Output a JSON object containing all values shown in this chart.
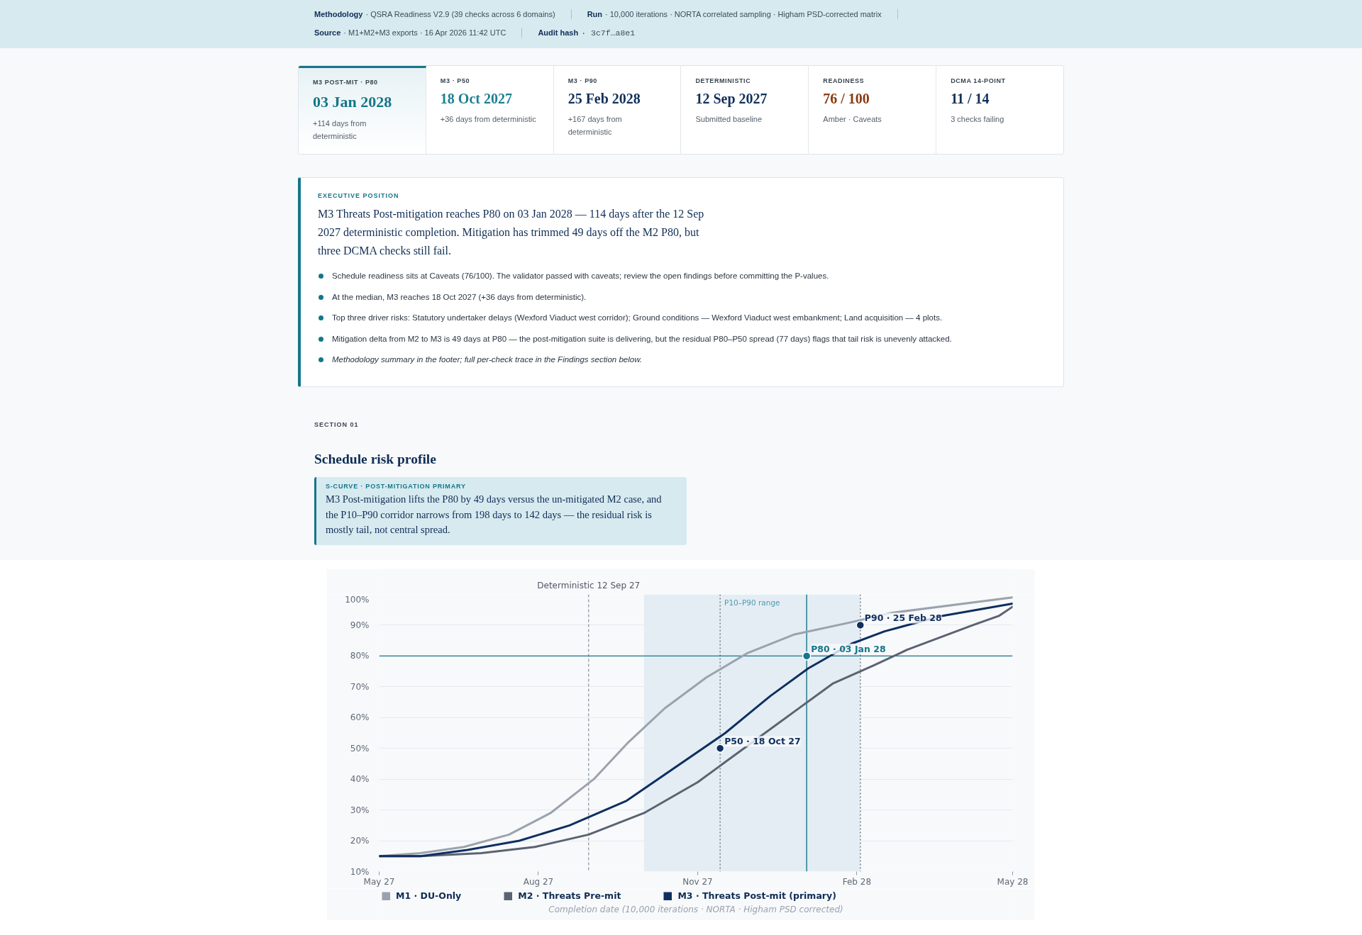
{
  "chart_data": [
    {
      "type": "other",
      "annotations": [
        "Methodology",
        "· QSRA Readiness V2.9 (39 checks across 6 domains)",
        "Run",
        "· 10,000 iterations · NORTA correlated sampling · Higham PSD-corrected matrix",
        "Source",
        "· M1+M2+M3 exports · 16 Apr 2026 11:42 UTC",
        "Audit hash",
        "· 3c7f…a8e1"
      ]
    },
    {
      "type": "other",
      "annotations": [
        "M3 POST-MIT · P80",
        "03 Jan 2028",
        "+114 days from deterministic",
        "M3 · P50",
        "18 Oct 2027",
        "+36 days from deterministic",
        "M3 · P90",
        "25 Feb 2028",
        "+167 days from deterministic",
        "DETERMINISTIC",
        "12 Sep 2027",
        "Submitted baseline",
        "READINESS",
        "76 / 100",
        "Amber · Caveats",
        "DCMA 14-POINT",
        "11 / 14",
        "3 checks failing"
      ],
      "colors": [
        "#16768a",
        "#1d7f94",
        "#12305a",
        "#12305a",
        "#8a3a12",
        "#12305a"
      ]
    },
    {
      "type": "other",
      "title": "EXECUTIVE POSITION",
      "subtitle": "M3 Threats Post-mitigation reaches P80 on 03 Jan 2028 — 114 days after the 12 Sep 2027 deterministic completion. Mitigation has trimmed 49 days off the M2 P80, but three DCMA checks still fail.",
      "annotations": [
        "Schedule readiness sits at Caveats (76/100). The validator passed with caveats; review the open findings before committing the P-values.",
        "At the median, M3 reaches 18 Oct 2027 (+36 days from deterministic).",
        "Top three driver risks: Statutory undertaker delays (Wexford Viaduct west corridor); Ground conditions — Wexford Viaduct west embankment; Land acquisition — 4 plots.",
        "Mitigation delta from M2 to M3 is 49 days at P80 — the post-mitigation suite is delivering, but the residual P80–P50 spread (77 days) flags that tail risk is unevenly attacked.",
        "Methodology summary in the footer; full per-check trace in the Findings section below."
      ]
    },
    {
      "type": "line",
      "title": "Schedule risk profile",
      "subtitle": "M3 Post-mitigation lifts the P80 by 49 days versus the un-mitigated M2 case, and the P10–P90 corridor narrows from 198 days to 142 days — the residual risk is mostly tail, not central spread.",
      "xlabel": "Completion date (10,000 iterations · NORTA · Higham PSD corrected)",
      "annotations": [
        "SECTION 01",
        "S-CURVE · POST-MITIGATION PRIMARY",
        {
          "text": "P50 · 18 Oct 27",
          "x": "2027-11-14",
          "y": 50
        },
        {
          "text": "P80 · 03 Jan 28",
          "x": "2028-01-03",
          "y": 80
        },
        {
          "text": "P90 · 25 Feb 28",
          "x": "2028-02-03",
          "y": 90
        }
      ],
      "xlim": [
        "2027-05-01",
        "2028-05-01"
      ],
      "xticks": [
        {
          "value": "2027-05-01",
          "label": "May 27"
        },
        {
          "value": "2027-08-01",
          "label": "Aug 27"
        },
        {
          "value": "2027-11-01",
          "label": "Nov 27"
        },
        {
          "value": "2028-02-01",
          "label": "Feb 28"
        },
        {
          "value": "2028-05-01",
          "label": "May 28"
        }
      ],
      "ylim": [
        10,
        100
      ],
      "yticks": [
        {
          "value": 10,
          "label": "10%"
        },
        {
          "value": 20,
          "label": "20%"
        },
        {
          "value": 30,
          "label": "30%"
        },
        {
          "value": 40,
          "label": "40%"
        },
        {
          "value": 50,
          "label": "50%"
        },
        {
          "value": 60,
          "label": "60%"
        },
        {
          "value": 70,
          "label": "70%"
        },
        {
          "value": 80,
          "label": "80%"
        },
        {
          "value": 90,
          "label": "90%"
        },
        {
          "value": 100,
          "label": "100%"
        }
      ],
      "grid": "y",
      "legend": "bottom",
      "series": [
        {
          "name": "M1 · DU-Only",
          "color": "#9aa3ad",
          "x": [
            "2027-05-01",
            "2027-05-25",
            "2027-06-19",
            "2027-07-15",
            "2027-08-08",
            "2027-09-02",
            "2027-09-22",
            "2027-10-13",
            "2027-11-06",
            "2027-11-30",
            "2027-12-27",
            "2028-01-29",
            "2028-02-21",
            "2028-05-01"
          ],
          "values": [
            15,
            16,
            18,
            22,
            29,
            40,
            52,
            63,
            73,
            81,
            87,
            91,
            94,
            99
          ]
        },
        {
          "name": "M2 · Threats Pre-mit",
          "color": "#5a6371",
          "x": [
            "2027-05-01",
            "2027-05-25",
            "2027-06-29",
            "2027-07-30",
            "2027-08-30",
            "2027-10-01",
            "2027-11-01",
            "2027-12-27",
            "2028-01-18",
            "2028-02-11",
            "2028-03-01",
            "2028-04-08",
            "2028-04-23",
            "2028-05-01"
          ],
          "values": [
            15,
            15,
            16,
            18,
            22,
            29,
            39,
            62,
            71,
            77,
            82,
            90,
            93,
            96
          ]
        },
        {
          "name": "M3 · Threats Post-mit (primary)",
          "color": "#0f2f5f",
          "x": [
            "2027-05-01",
            "2027-05-25",
            "2027-06-21",
            "2027-07-21",
            "2027-08-19",
            "2027-09-21",
            "2027-11-17",
            "2027-11-30",
            "2027-12-13",
            "2028-01-04",
            "2028-01-29",
            "2028-02-17",
            "2028-03-21",
            "2028-05-01"
          ],
          "values": [
            15,
            15,
            17,
            20,
            25,
            33,
            55,
            61,
            67,
            76,
            84,
            88,
            93,
            97
          ]
        },
        {
          "type": "scatter",
          "marker": "circle",
          "x": [
            "2027-11-14",
            "2028-01-03",
            "2028-02-03"
          ],
          "values": [
            50,
            80,
            90
          ],
          "colors": [
            "#0f2f5f",
            "#15768a",
            "#0f2f5f"
          ]
        }
      ],
      "ref_lines": [
        {
          "axis": "x",
          "value": "2027-08-30",
          "label": "Deterministic 12 Sep 27",
          "line_style": "dashed",
          "color": "#9aa1aa"
        },
        {
          "axis": "x",
          "value": "2027-11-14",
          "line_style": "dotted",
          "color": "#6b737d"
        },
        {
          "axis": "x",
          "value": "2028-02-03",
          "line_style": "dotted",
          "color": "#6b737d"
        },
        {
          "axis": "x",
          "value": "2028-01-03",
          "line_style": "solid",
          "color": "#15768a"
        },
        {
          "axis": "y",
          "value": 80,
          "line_style": "solid",
          "color": "#15768a"
        }
      ],
      "bands": [
        {
          "axis": "x",
          "from": "2027-10-01",
          "to": "2028-02-03",
          "label": "P10–P90 range",
          "color": "#e4edf3"
        }
      ]
    }
  ]
}
